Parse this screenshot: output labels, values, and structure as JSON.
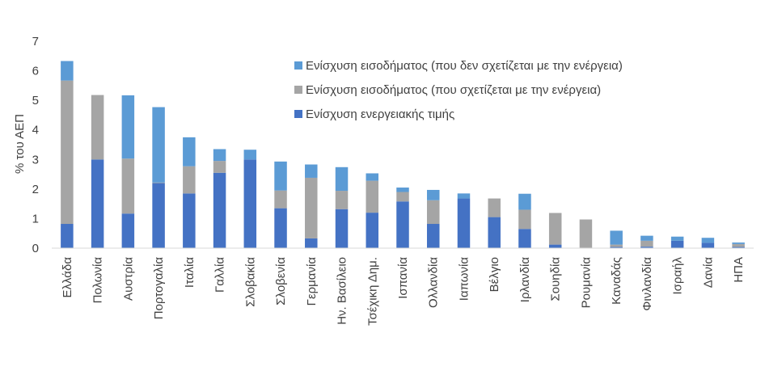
{
  "chart_data": {
    "type": "bar",
    "stacked": true,
    "ylabel": "% του ΑΕΠ",
    "xlabel": "",
    "ylim": [
      0,
      7
    ],
    "yticks": [
      "0",
      "1",
      "2",
      "3",
      "4",
      "5",
      "6",
      "7"
    ],
    "grid": false,
    "legend_position": "top-right",
    "categories": [
      "Ελλάδα",
      "Πολωνία",
      "Αυστρία",
      "Πορτογαλία",
      "Ιταλία",
      "Γαλλία",
      "Σλοβακία",
      "Σλοβενία",
      "Γερμανία",
      "Ην. Βασίλειο",
      "Τσέχικη Δημ.",
      "Ισπανία",
      "Ολλανδία",
      "Ιαπωνία",
      "Βέλγιο",
      "Ιρλανδία",
      "Σουηδία",
      "Ρουμανία",
      "Καναδάς",
      "Φινλανδία",
      "Ισραήλ",
      "Δανία",
      "ΗΠΑ"
    ],
    "series": [
      {
        "name": "Ενίσχυση ενεργειακής τιμής",
        "color": "#4472c4",
        "values": [
          0.82,
          3.0,
          1.17,
          2.2,
          1.85,
          2.55,
          3.0,
          1.35,
          0.33,
          1.32,
          1.2,
          1.58,
          0.82,
          1.68,
          1.05,
          0.65,
          0.12,
          0.0,
          0.04,
          0.05,
          0.25,
          0.18,
          0.04
        ]
      },
      {
        "name": "Ενίσχυση εισοδήματος (που σχετίζεται με την ενέργεια)",
        "color": "#a5a5a5",
        "values": [
          4.85,
          2.18,
          1.86,
          0.02,
          0.92,
          0.4,
          0.0,
          0.6,
          2.05,
          0.62,
          1.08,
          0.32,
          0.8,
          0.0,
          0.63,
          0.65,
          1.07,
          0.97,
          0.08,
          0.2,
          0.0,
          0.0,
          0.1
        ]
      },
      {
        "name": "Ενίσχυση εισοδήματος (που δεν σχετίζεται με την ενέργεια)",
        "color": "#5b9bd5",
        "values": [
          0.66,
          0.0,
          2.14,
          2.55,
          0.98,
          0.4,
          0.33,
          0.98,
          0.45,
          0.8,
          0.25,
          0.15,
          0.35,
          0.17,
          0.0,
          0.54,
          0.0,
          0.0,
          0.47,
          0.17,
          0.14,
          0.17,
          0.05
        ]
      }
    ],
    "legend_order": [
      "Ενίσχυση εισοδήματος (που δεν σχετίζεται με την ενέργεια)",
      "Ενίσχυση εισοδήματος (που σχετίζεται με την ενέργεια)",
      "Ενίσχυση ενεργειακής τιμής"
    ]
  }
}
